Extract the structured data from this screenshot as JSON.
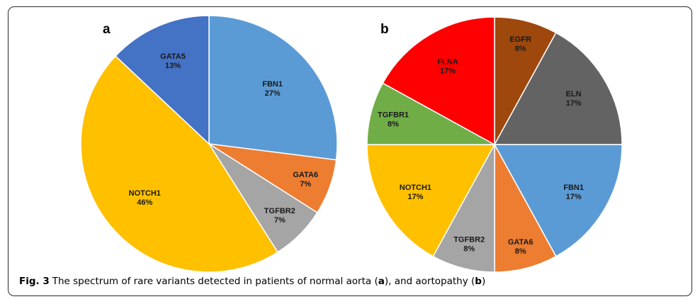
{
  "chart_data": [
    {
      "type": "pie",
      "panel_label": "a",
      "slices": [
        {
          "label": "FBN1",
          "value": 27,
          "pct": "27%",
          "color": "#5b9bd5"
        },
        {
          "label": "GATA6",
          "value": 7,
          "pct": "7%",
          "color": "#ed7d31"
        },
        {
          "label": "TGFBR2",
          "value": 7,
          "pct": "7%",
          "color": "#a5a5a5"
        },
        {
          "label": "NOTCH1",
          "value": 46,
          "pct": "46%",
          "color": "#ffc000"
        },
        {
          "label": "GATA5",
          "value": 13,
          "pct": "13%",
          "color": "#4472c4"
        }
      ]
    },
    {
      "type": "pie",
      "panel_label": "b",
      "slices": [
        {
          "label": "EGFR",
          "value": 8,
          "pct": "8%",
          "color": "#9e480e"
        },
        {
          "label": "ELN",
          "value": 17,
          "pct": "17%",
          "color": "#636363"
        },
        {
          "label": "FBN1",
          "value": 17,
          "pct": "17%",
          "color": "#5b9bd5"
        },
        {
          "label": "GATA6",
          "value": 8,
          "pct": "8%",
          "color": "#ed7d31"
        },
        {
          "label": "TGFBR2",
          "value": 8,
          "pct": "8%",
          "color": "#a5a5a5"
        },
        {
          "label": "NOTCH1",
          "value": 17,
          "pct": "17%",
          "color": "#ffc000"
        },
        {
          "label": "TGFBR1",
          "value": 8,
          "pct": "8%",
          "color": "#70ad47"
        },
        {
          "label": "FLNA",
          "value": 17,
          "pct": "17%",
          "color": "#ff0000"
        }
      ]
    }
  ],
  "caption": {
    "fig_label": "Fig. 3",
    "text_1": "The spectrum of rare variants detected in patients of normal aorta (",
    "ref_a": "a",
    "text_2": "), and aortopathy (",
    "ref_b": "b",
    "text_3": ")"
  }
}
